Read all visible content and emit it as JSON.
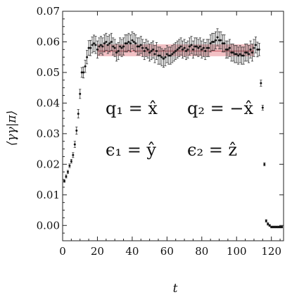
{
  "chart_data": {
    "type": "scatter",
    "xlabel": "t",
    "ylabel": "⟨γγ|π⟩",
    "xlim": [
      0,
      127
    ],
    "ylim": [
      -0.005,
      0.07
    ],
    "xticks": [
      "0",
      "20",
      "40",
      "60",
      "80",
      "100",
      "120"
    ],
    "yticks": [
      "0.00",
      "0.01",
      "0.02",
      "0.03",
      "0.04",
      "0.05",
      "0.06",
      "0.07"
    ],
    "grid": false,
    "fit_band": {
      "x_range": [
        20,
        110
      ],
      "center": 0.057,
      "lower": 0.0553,
      "upper": 0.0592,
      "color": "#e88c93"
    },
    "annotations": [
      "q₁ = x̂",
      "q₂ = −x̂",
      "ϵ₁ = ŷ",
      "ϵ₂ = ẑ"
    ],
    "series": [
      {
        "x": [
          1,
          2,
          3,
          4,
          5,
          6,
          7,
          8,
          9,
          10,
          11,
          12,
          13,
          14,
          15,
          16,
          17,
          18,
          19,
          20,
          21,
          22,
          23,
          24,
          25,
          26,
          27,
          28,
          29,
          30,
          31,
          32,
          33,
          34,
          35,
          36,
          37,
          38,
          39,
          40,
          41,
          42,
          43,
          44,
          45,
          46,
          47,
          48,
          49,
          50,
          51,
          52,
          53,
          54,
          55,
          56,
          57,
          58,
          59,
          60,
          61,
          62,
          63,
          64,
          65,
          66,
          67,
          68,
          69,
          70,
          71,
          72,
          73,
          74,
          75,
          76,
          77,
          78,
          79,
          80,
          81,
          82,
          83,
          84,
          85,
          86,
          87,
          88,
          89,
          90,
          91,
          92,
          93,
          94,
          95,
          96,
          97,
          98,
          99,
          100,
          101,
          102,
          103,
          104,
          105,
          106,
          107,
          108,
          109,
          110,
          111,
          112,
          113,
          114,
          115,
          116,
          117,
          118,
          119,
          120,
          121,
          122,
          123,
          124,
          125,
          126
        ],
        "y": [
          0.0145,
          0.016,
          0.0175,
          0.0195,
          0.021,
          0.023,
          0.0265,
          0.031,
          0.0365,
          0.043,
          0.05,
          0.05,
          0.052,
          0.055,
          0.058,
          0.058,
          0.059,
          0.0595,
          0.059,
          0.0575,
          0.0585,
          0.059,
          0.0585,
          0.0595,
          0.06,
          0.059,
          0.0595,
          0.06,
          0.0585,
          0.058,
          0.0565,
          0.057,
          0.0585,
          0.058,
          0.0585,
          0.0595,
          0.0595,
          0.06,
          0.0595,
          0.0605,
          0.06,
          0.0595,
          0.0585,
          0.0585,
          0.059,
          0.058,
          0.057,
          0.058,
          0.0575,
          0.0565,
          0.057,
          0.0575,
          0.056,
          0.057,
          0.0555,
          0.0555,
          0.055,
          0.0545,
          0.055,
          0.056,
          0.0555,
          0.0555,
          0.056,
          0.0565,
          0.057,
          0.0575,
          0.058,
          0.0585,
          0.0575,
          0.058,
          0.057,
          0.0575,
          0.0585,
          0.059,
          0.0575,
          0.0585,
          0.0585,
          0.058,
          0.0585,
          0.0575,
          0.058,
          0.057,
          0.058,
          0.058,
          0.0595,
          0.06,
          0.06,
          0.0605,
          0.0615,
          0.0605,
          0.0605,
          0.0595,
          0.0595,
          0.0575,
          0.0575,
          0.058,
          0.0565,
          0.0565,
          0.056,
          0.056,
          0.0555,
          0.056,
          0.0555,
          0.0555,
          0.0565,
          0.0565,
          0.056,
          0.0575,
          0.0565,
          0.058,
          0.059,
          0.0575,
          0.0575,
          0.0465,
          0.0385,
          0.02,
          0.0015,
          0.0005,
          0,
          -0.0005,
          -0.0005,
          -0.0005,
          -0.0005,
          -0.0005,
          -0.0005,
          -0.0005
        ],
        "err": [
          0.0004,
          0.0005,
          0.0005,
          0.0006,
          0.0006,
          0.0008,
          0.001,
          0.0012,
          0.0014,
          0.0015,
          0.0016,
          0.0018,
          0.002,
          0.0022,
          0.0024,
          0.0025,
          0.0026,
          0.0027,
          0.0028,
          0.0028,
          0.0028,
          0.0028,
          0.0028,
          0.0028,
          0.0028,
          0.0028,
          0.0028,
          0.0028,
          0.0028,
          0.0028,
          0.0028,
          0.0028,
          0.0028,
          0.0028,
          0.0028,
          0.0028,
          0.0028,
          0.0028,
          0.0028,
          0.0028,
          0.0028,
          0.0028,
          0.0028,
          0.0028,
          0.0028,
          0.0028,
          0.0028,
          0.0028,
          0.0028,
          0.0028,
          0.0028,
          0.0028,
          0.0028,
          0.0028,
          0.0028,
          0.0028,
          0.0028,
          0.0028,
          0.0028,
          0.0028,
          0.0028,
          0.0028,
          0.0028,
          0.0028,
          0.0028,
          0.0028,
          0.0028,
          0.0028,
          0.0028,
          0.0028,
          0.0028,
          0.0028,
          0.0028,
          0.0028,
          0.0028,
          0.0028,
          0.0028,
          0.0028,
          0.0028,
          0.0028,
          0.0028,
          0.0028,
          0.0028,
          0.0028,
          0.0028,
          0.0028,
          0.0028,
          0.0028,
          0.0028,
          0.0028,
          0.0028,
          0.0028,
          0.0028,
          0.0028,
          0.0028,
          0.0028,
          0.0028,
          0.0028,
          0.0028,
          0.0028,
          0.0028,
          0.0028,
          0.0028,
          0.0028,
          0.0028,
          0.0028,
          0.0028,
          0.0028,
          0.0028,
          0.0028,
          0.0026,
          0.0024,
          0.002,
          0.001,
          0.0008,
          0.0005,
          0.0004,
          0.0004,
          0.0003,
          0.0003,
          0.0003,
          0.0003,
          0.0003,
          0.0003,
          0.0003,
          0.0003
        ]
      }
    ]
  }
}
